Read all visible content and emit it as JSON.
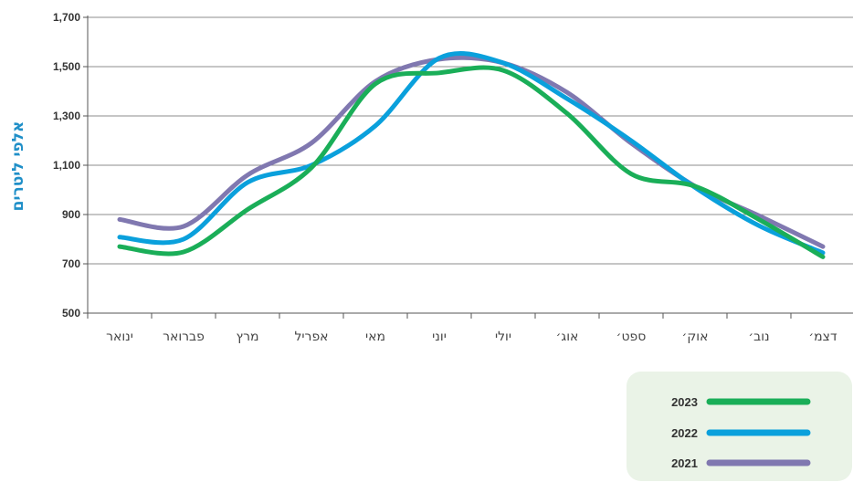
{
  "chart_data": {
    "type": "line",
    "ylabel": "אלפי ליטרים",
    "xlabel": "",
    "ylim": [
      500,
      1700
    ],
    "yticks": [
      500,
      700,
      900,
      1100,
      1300,
      1500,
      1700
    ],
    "ytick_labels": [
      "500",
      "700",
      "900",
      "1,100",
      "1,300",
      "1,500",
      "1,700"
    ],
    "categories": [
      "ינואר",
      "פברואר",
      "מרץ",
      "אפריל",
      "מאי",
      "יוני",
      "יולי",
      "אוג׳",
      "ספט׳",
      "אוק׳",
      "נוב׳",
      "דצמ׳"
    ],
    "grid": true,
    "legend_position": "bottom-right",
    "series": [
      {
        "name": "2023",
        "color": "#1aae58",
        "values": [
          770,
          748,
          920,
          1090,
          1430,
          1475,
          1485,
          1310,
          1065,
          1015,
          880,
          728
        ]
      },
      {
        "name": "2022",
        "color": "#0aa0dc",
        "values": [
          808,
          800,
          1030,
          1100,
          1260,
          1535,
          1515,
          1370,
          1200,
          1010,
          855,
          745
        ]
      },
      {
        "name": "2021",
        "color": "#8078b0",
        "values": [
          880,
          852,
          1060,
          1190,
          1440,
          1530,
          1515,
          1395,
          1190,
          1015,
          895,
          770
        ]
      }
    ]
  }
}
